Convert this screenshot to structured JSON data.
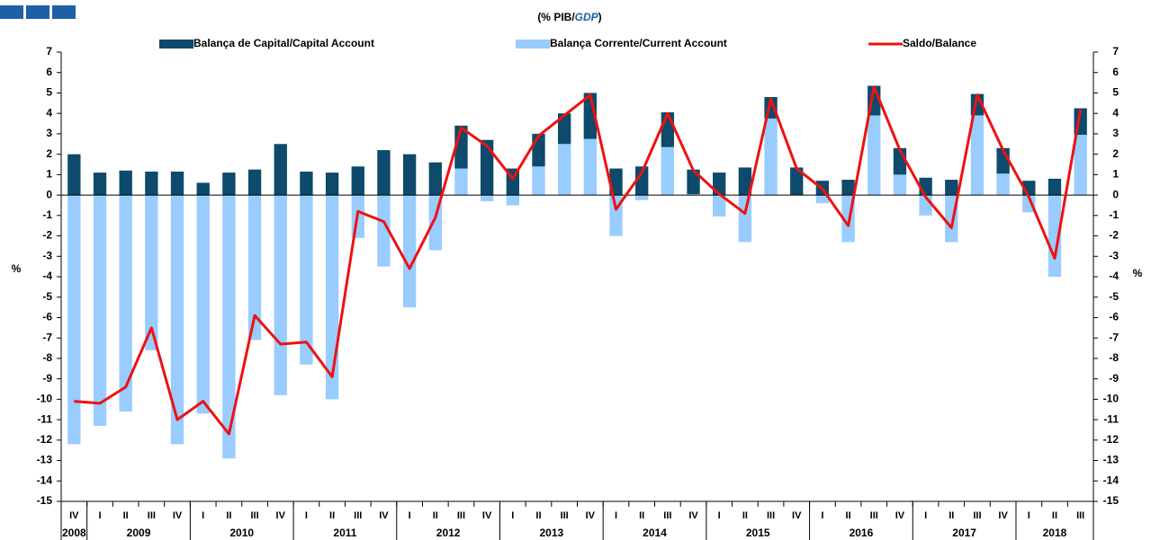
{
  "chart_data": {
    "type": "bar",
    "title_parts": [
      "(% PIB/",
      "GDP",
      ")"
    ],
    "y_label": "%",
    "y2_label": "%",
    "category_groups": [
      {
        "name": "2008",
        "categories": [
          "IV"
        ]
      },
      {
        "name": "2009",
        "categories": [
          "I",
          "II",
          "III",
          "IV"
        ]
      },
      {
        "name": "2010",
        "categories": [
          "I",
          "II",
          "III",
          "IV"
        ]
      },
      {
        "name": "2011",
        "categories": [
          "I",
          "II",
          "III",
          "IV"
        ]
      },
      {
        "name": "2012",
        "categories": [
          "I",
          "II",
          "III",
          "IV"
        ]
      },
      {
        "name": "2013",
        "categories": [
          "I",
          "II",
          "III",
          "IV"
        ]
      },
      {
        "name": "2014",
        "categories": [
          "I",
          "II",
          "III",
          "IV"
        ]
      },
      {
        "name": "2015",
        "categories": [
          "I",
          "II",
          "III",
          "IV"
        ]
      },
      {
        "name": "2016",
        "categories": [
          "I",
          "II",
          "III",
          "IV"
        ]
      },
      {
        "name": "2017",
        "categories": [
          "I",
          "II",
          "III",
          "IV"
        ]
      },
      {
        "name": "2018",
        "categories": [
          "I",
          "II",
          "III"
        ]
      }
    ],
    "series": [
      {
        "name": "Balança de Capital/Capital Account",
        "kind": "bar",
        "color": "#0d4a6b",
        "values": [
          2.0,
          1.1,
          1.2,
          1.15,
          1.15,
          0.6,
          1.1,
          1.25,
          2.5,
          1.15,
          1.1,
          1.4,
          2.2,
          2.0,
          1.6,
          2.1,
          2.7,
          1.3,
          1.6,
          1.5,
          2.25,
          1.3,
          1.4,
          1.7,
          1.2,
          1.1,
          1.35,
          1.05,
          1.35,
          0.7,
          0.75,
          1.45,
          1.3,
          0.85,
          0.75,
          1.05,
          1.25,
          0.7,
          0.8,
          1.3
        ]
      },
      {
        "name": "Balança Corrente/Current Account",
        "kind": "bar",
        "color": "#99ccff",
        "values": [
          -12.2,
          -11.3,
          -10.6,
          -7.6,
          -12.2,
          -10.7,
          -12.9,
          -7.1,
          -9.8,
          -8.3,
          -10.0,
          -2.1,
          -3.5,
          -5.5,
          -2.7,
          1.3,
          -0.3,
          -0.5,
          1.4,
          2.5,
          2.75,
          -2.0,
          -0.25,
          2.35,
          0.05,
          -1.05,
          -2.3,
          3.75,
          0.0,
          -0.4,
          -2.3,
          3.9,
          1.0,
          -1.0,
          -2.3,
          3.9,
          1.05,
          -0.85,
          -4.0,
          2.95
        ]
      },
      {
        "name": "Saldo/Balance",
        "kind": "line",
        "color": "#ee1111",
        "values": [
          -10.1,
          -10.2,
          -9.4,
          -6.5,
          -11.0,
          -10.1,
          -11.7,
          -5.9,
          -7.3,
          -7.2,
          -8.9,
          -0.8,
          -1.3,
          -3.6,
          -1.1,
          3.3,
          2.4,
          0.8,
          2.9,
          3.9,
          4.9,
          -0.7,
          1.1,
          4.0,
          1.2,
          0.05,
          -0.9,
          4.7,
          1.3,
          0.3,
          -1.5,
          5.3,
          2.2,
          -0.1,
          -1.6,
          4.9,
          2.2,
          -0.1,
          -3.1,
          4.2
        ]
      }
    ],
    "ylim": [
      -15,
      7
    ],
    "yticks": [
      -15,
      -14,
      -13,
      -12,
      -11,
      -10,
      -9,
      -8,
      -7,
      -6,
      -5,
      -4,
      -3,
      -2,
      -1,
      0,
      1,
      2,
      3,
      4,
      5,
      6,
      7
    ],
    "y2lim": [
      -15,
      7
    ],
    "y2ticks": [
      -15,
      -14,
      -13,
      -12,
      -11,
      -10,
      -9,
      -8,
      -7,
      -6,
      -5,
      -4,
      -3,
      -2,
      -1,
      0,
      1,
      2,
      3,
      4,
      5,
      6,
      7
    ],
    "grid": false
  }
}
